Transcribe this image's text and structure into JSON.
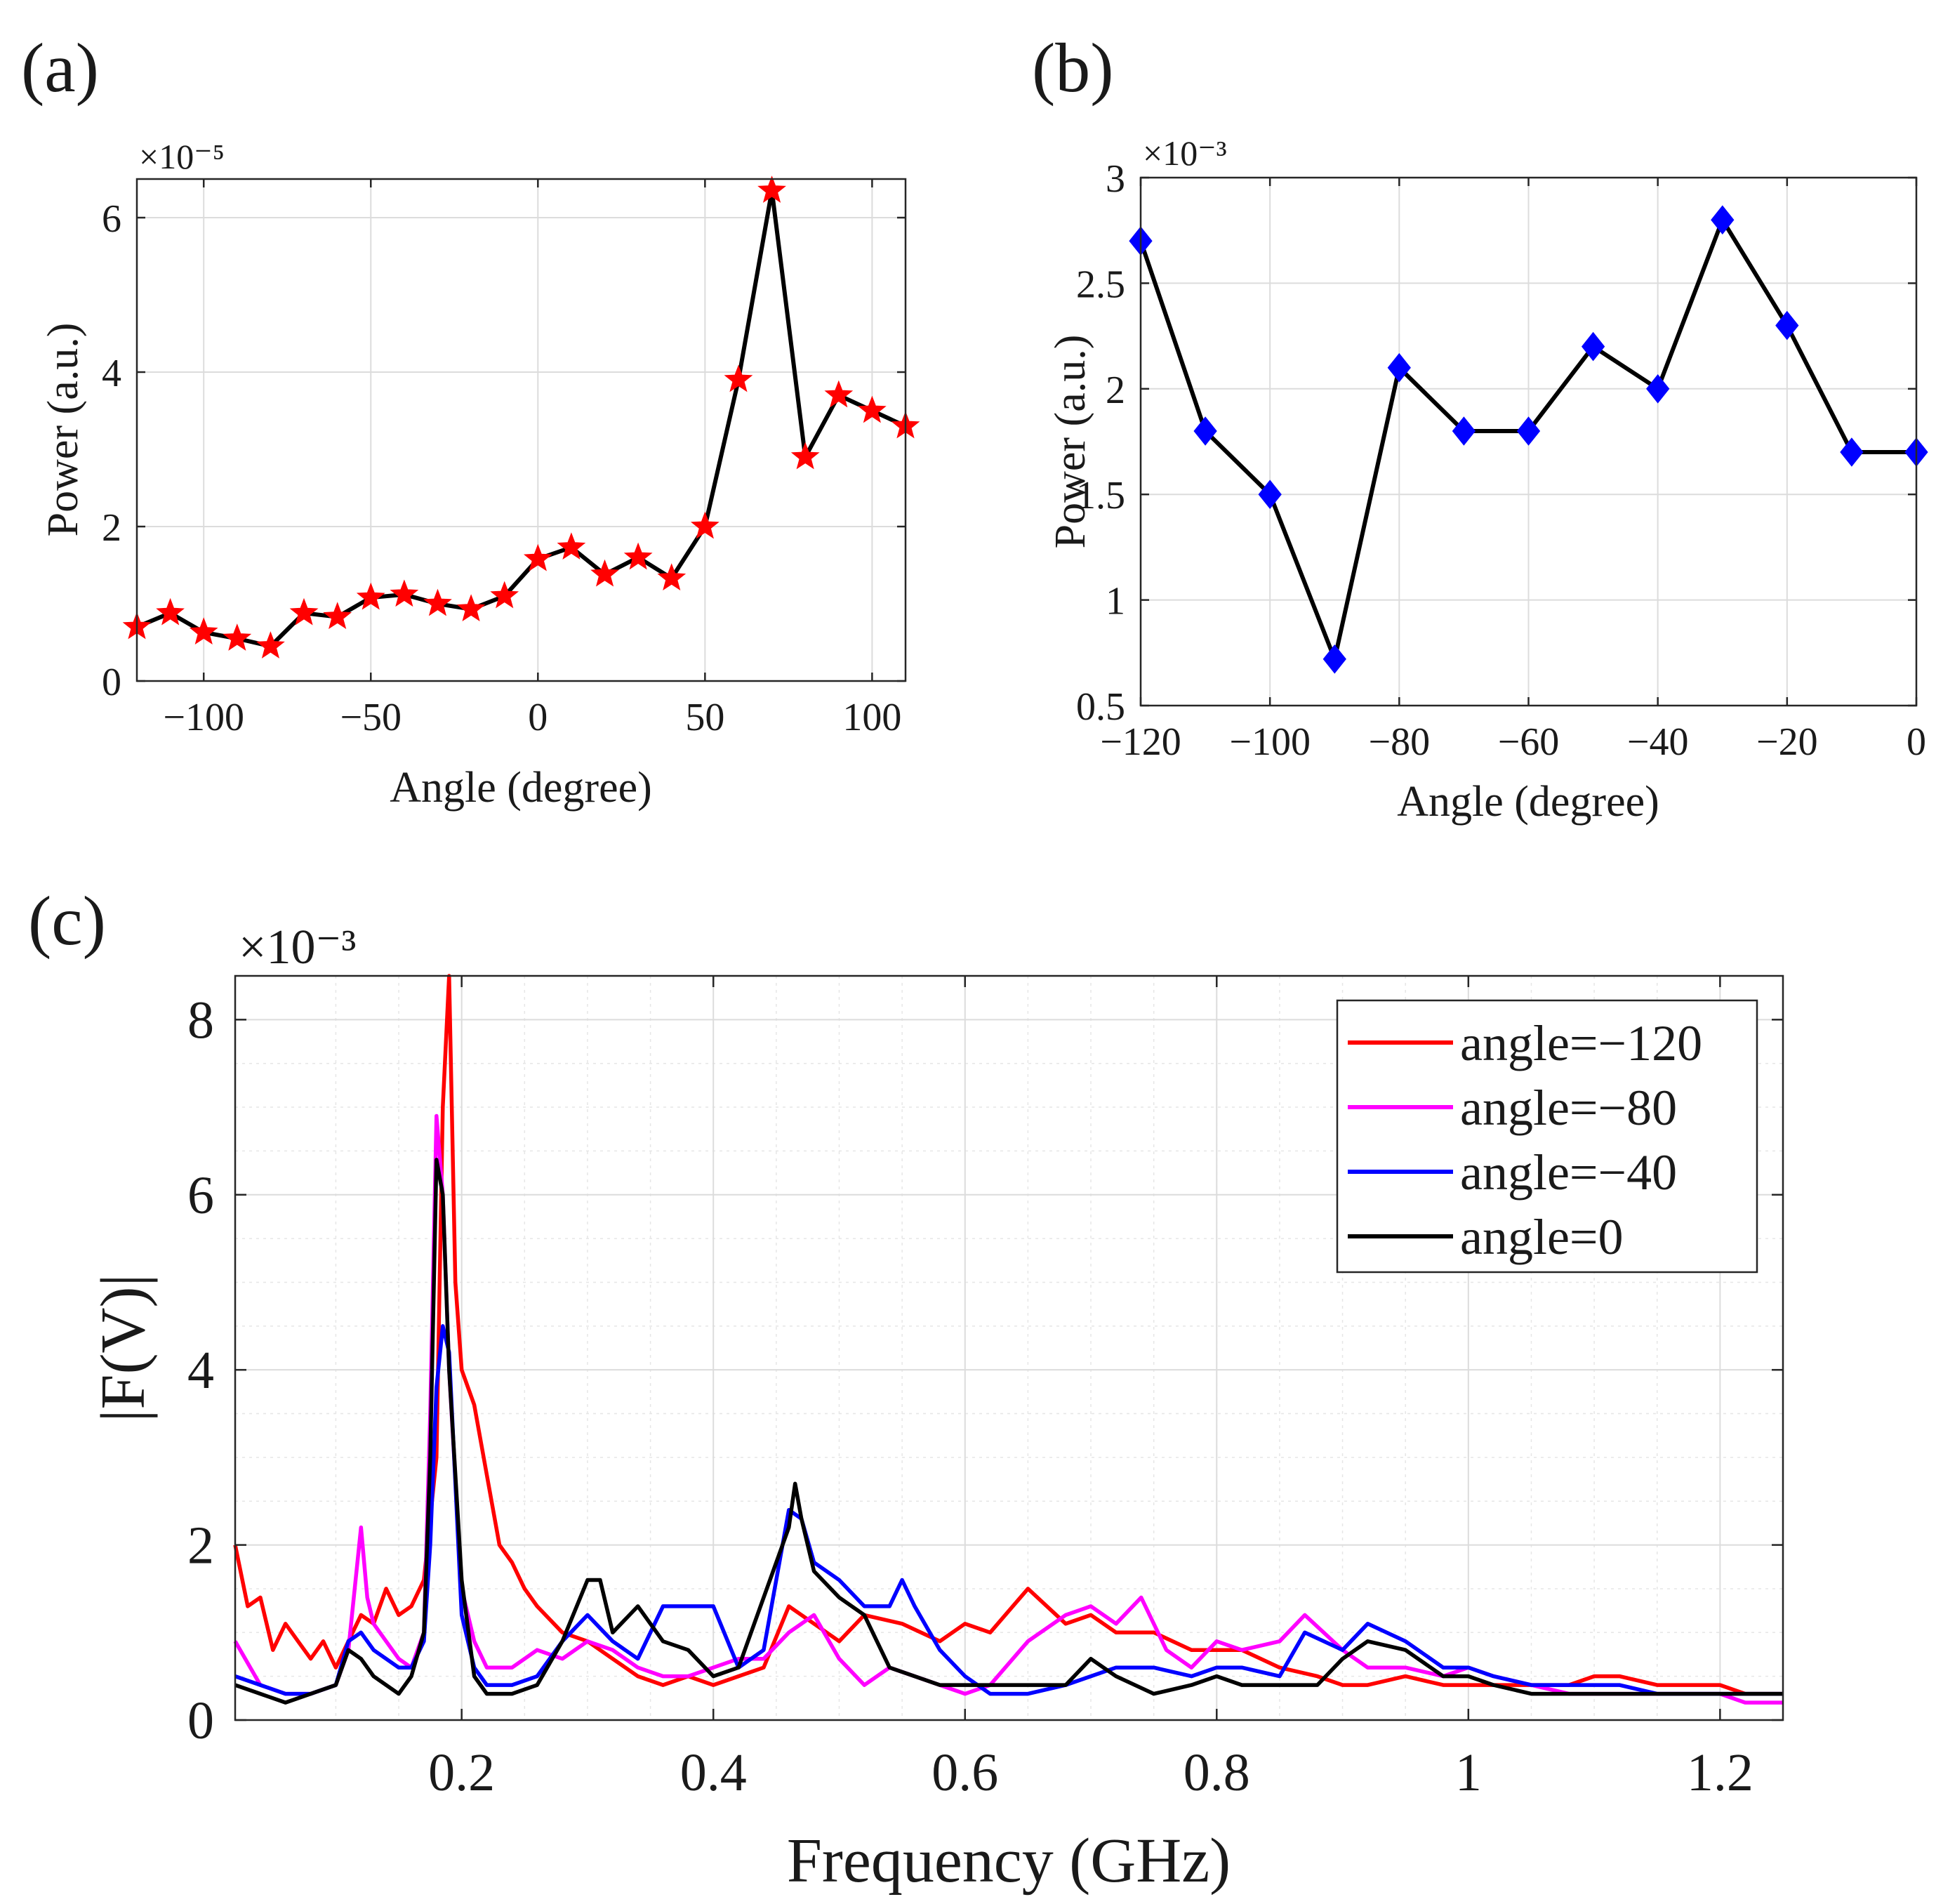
{
  "panels": {
    "a": "(a)",
    "b": "(b)",
    "c": "(c)"
  },
  "chart_data": [
    {
      "id": "a",
      "type": "line",
      "xlabel": "Angle (degree)",
      "ylabel": "Power (a.u.)",
      "exponent_label": "×10⁻⁵",
      "xlim": [
        -120,
        110
      ],
      "ylim": [
        0,
        6.5
      ],
      "xticks": [
        -100,
        -50,
        0,
        50,
        100
      ],
      "xtick_labels": [
        "−100",
        "−50",
        "0",
        "50",
        "100"
      ],
      "yticks": [
        0,
        2,
        4,
        6
      ],
      "ytick_labels": [
        "0",
        "2",
        "4",
        "6"
      ],
      "grid": true,
      "marker": "star",
      "marker_color": "#ff0000",
      "line_color": "#000000",
      "x": [
        -120,
        -110,
        -100,
        -90,
        -80,
        -70,
        -60,
        -50,
        -40,
        -30,
        -20,
        -10,
        0,
        10,
        20,
        30,
        40,
        50,
        60,
        70,
        80,
        90,
        100,
        110
      ],
      "y": [
        0.7,
        0.88,
        0.63,
        0.55,
        0.45,
        0.88,
        0.83,
        1.08,
        1.12,
        1.0,
        0.93,
        1.1,
        1.58,
        1.73,
        1.38,
        1.6,
        1.33,
        2.0,
        3.9,
        6.35,
        2.9,
        3.7,
        3.5,
        3.3
      ]
    },
    {
      "id": "b",
      "type": "line",
      "xlabel": "Angle (degree)",
      "ylabel": "Power (a.u.)",
      "exponent_label": "×10⁻³",
      "xlim": [
        -120,
        0
      ],
      "ylim": [
        0.5,
        3
      ],
      "xticks": [
        -120,
        -100,
        -80,
        -60,
        -40,
        -20,
        0
      ],
      "xtick_labels": [
        "−120",
        "−100",
        "−80",
        "−60",
        "−40",
        "−20",
        "0"
      ],
      "yticks": [
        0.5,
        1,
        1.5,
        2,
        2.5,
        3
      ],
      "ytick_labels": [
        "0.5",
        "1",
        "1.5",
        "2",
        "2.5",
        "3"
      ],
      "grid": true,
      "marker": "diamond",
      "marker_color": "#0000ff",
      "line_color": "#000000",
      "x": [
        -120,
        -110,
        -100,
        -90,
        -80,
        -70,
        -60,
        -50,
        -40,
        -30,
        -20,
        -10,
        0
      ],
      "y": [
        2.7,
        1.8,
        1.5,
        0.72,
        2.1,
        1.8,
        1.8,
        2.2,
        2.0,
        2.8,
        2.3,
        1.7,
        1.7
      ]
    },
    {
      "id": "c",
      "type": "line",
      "xlabel": "Frequency (GHz)",
      "ylabel": "|F(V)|",
      "exponent_label": "×10⁻³",
      "xlim": [
        0.02,
        1.25
      ],
      "ylim": [
        0,
        8.5
      ],
      "xticks": [
        0.2,
        0.4,
        0.6,
        0.8,
        1,
        1.2
      ],
      "xtick_labels": [
        "0.2",
        "0.4",
        "0.6",
        "0.8",
        "1",
        "1.2"
      ],
      "yticks": [
        0,
        2,
        4,
        6,
        8
      ],
      "ytick_labels": [
        "0",
        "2",
        "4",
        "6",
        "8"
      ],
      "grid": true,
      "legend_position": "top-right",
      "series": [
        {
          "name": "angle=−120",
          "color": "#ff0000",
          "x": [
            0.02,
            0.03,
            0.04,
            0.05,
            0.06,
            0.07,
            0.08,
            0.09,
            0.1,
            0.11,
            0.12,
            0.13,
            0.14,
            0.15,
            0.16,
            0.17,
            0.18,
            0.185,
            0.19,
            0.195,
            0.2,
            0.21,
            0.22,
            0.23,
            0.24,
            0.25,
            0.26,
            0.28,
            0.3,
            0.32,
            0.34,
            0.36,
            0.38,
            0.4,
            0.42,
            0.44,
            0.46,
            0.48,
            0.5,
            0.52,
            0.55,
            0.58,
            0.6,
            0.62,
            0.65,
            0.68,
            0.7,
            0.72,
            0.75,
            0.78,
            0.8,
            0.82,
            0.85,
            0.88,
            0.9,
            0.92,
            0.95,
            0.98,
            1.0,
            1.02,
            1.05,
            1.08,
            1.1,
            1.12,
            1.15,
            1.18,
            1.2,
            1.22,
            1.25
          ],
          "y": [
            2.0,
            1.3,
            1.4,
            0.8,
            1.1,
            0.9,
            0.7,
            0.9,
            0.6,
            0.9,
            1.2,
            1.1,
            1.5,
            1.2,
            1.3,
            1.6,
            3.0,
            7.0,
            8.5,
            5.0,
            4.0,
            3.6,
            2.8,
            2.0,
            1.8,
            1.5,
            1.3,
            1.0,
            0.9,
            0.7,
            0.5,
            0.4,
            0.5,
            0.4,
            0.5,
            0.6,
            1.3,
            1.1,
            0.9,
            1.2,
            1.1,
            0.9,
            1.1,
            1.0,
            1.5,
            1.1,
            1.2,
            1.0,
            1.0,
            0.8,
            0.8,
            0.8,
            0.6,
            0.5,
            0.4,
            0.4,
            0.5,
            0.4,
            0.4,
            0.4,
            0.4,
            0.4,
            0.5,
            0.5,
            0.4,
            0.4,
            0.4,
            0.3,
            0.3
          ]
        },
        {
          "name": "angle=−80",
          "color": "#ff00ff",
          "x": [
            0.02,
            0.04,
            0.06,
            0.08,
            0.1,
            0.11,
            0.12,
            0.125,
            0.13,
            0.14,
            0.15,
            0.16,
            0.17,
            0.175,
            0.18,
            0.185,
            0.19,
            0.2,
            0.21,
            0.22,
            0.24,
            0.26,
            0.28,
            0.3,
            0.32,
            0.34,
            0.36,
            0.38,
            0.4,
            0.42,
            0.44,
            0.46,
            0.48,
            0.5,
            0.52,
            0.54,
            0.56,
            0.58,
            0.6,
            0.62,
            0.65,
            0.68,
            0.7,
            0.72,
            0.74,
            0.76,
            0.78,
            0.8,
            0.82,
            0.85,
            0.87,
            0.9,
            0.92,
            0.95,
            0.98,
            1.0,
            1.02,
            1.05,
            1.08,
            1.1,
            1.12,
            1.15,
            1.18,
            1.2,
            1.22,
            1.25
          ],
          "y": [
            0.9,
            0.4,
            0.3,
            0.3,
            0.4,
            0.8,
            2.2,
            1.4,
            1.1,
            0.9,
            0.7,
            0.6,
            1.0,
            3.5,
            6.9,
            6.0,
            4.0,
            1.5,
            0.9,
            0.6,
            0.6,
            0.8,
            0.7,
            0.9,
            0.8,
            0.6,
            0.5,
            0.5,
            0.6,
            0.7,
            0.7,
            1.0,
            1.2,
            0.7,
            0.4,
            0.6,
            0.5,
            0.4,
            0.3,
            0.4,
            0.9,
            1.2,
            1.3,
            1.1,
            1.4,
            0.8,
            0.6,
            0.9,
            0.8,
            0.9,
            1.2,
            0.8,
            0.6,
            0.6,
            0.5,
            0.6,
            0.5,
            0.4,
            0.3,
            0.3,
            0.3,
            0.3,
            0.3,
            0.3,
            0.2,
            0.2
          ]
        },
        {
          "name": "angle=−40",
          "color": "#0000ff",
          "x": [
            0.02,
            0.04,
            0.06,
            0.08,
            0.1,
            0.11,
            0.12,
            0.13,
            0.14,
            0.15,
            0.16,
            0.17,
            0.175,
            0.18,
            0.185,
            0.19,
            0.2,
            0.21,
            0.22,
            0.24,
            0.26,
            0.28,
            0.3,
            0.32,
            0.34,
            0.36,
            0.38,
            0.4,
            0.42,
            0.44,
            0.46,
            0.47,
            0.48,
            0.5,
            0.52,
            0.54,
            0.55,
            0.56,
            0.58,
            0.6,
            0.62,
            0.65,
            0.68,
            0.7,
            0.72,
            0.75,
            0.78,
            0.8,
            0.82,
            0.85,
            0.87,
            0.9,
            0.92,
            0.95,
            0.98,
            1.0,
            1.02,
            1.05,
            1.08,
            1.1,
            1.12,
            1.15,
            1.18,
            1.2,
            1.22,
            1.25
          ],
          "y": [
            0.5,
            0.4,
            0.3,
            0.3,
            0.4,
            0.9,
            1.0,
            0.8,
            0.7,
            0.6,
            0.6,
            0.9,
            2.0,
            3.8,
            4.5,
            4.2,
            1.2,
            0.6,
            0.4,
            0.4,
            0.5,
            0.9,
            1.2,
            0.9,
            0.7,
            1.3,
            1.3,
            1.3,
            0.6,
            0.8,
            2.4,
            2.3,
            1.8,
            1.6,
            1.3,
            1.3,
            1.6,
            1.3,
            0.8,
            0.5,
            0.3,
            0.3,
            0.4,
            0.5,
            0.6,
            0.6,
            0.5,
            0.6,
            0.6,
            0.5,
            1.0,
            0.8,
            1.1,
            0.9,
            0.6,
            0.6,
            0.5,
            0.4,
            0.4,
            0.4,
            0.4,
            0.3,
            0.3,
            0.3,
            0.3,
            0.3
          ]
        },
        {
          "name": "angle=0",
          "color": "#000000",
          "x": [
            0.02,
            0.04,
            0.06,
            0.08,
            0.1,
            0.11,
            0.12,
            0.13,
            0.14,
            0.15,
            0.16,
            0.17,
            0.175,
            0.18,
            0.185,
            0.19,
            0.2,
            0.21,
            0.22,
            0.24,
            0.26,
            0.28,
            0.3,
            0.31,
            0.32,
            0.34,
            0.36,
            0.38,
            0.4,
            0.42,
            0.44,
            0.46,
            0.465,
            0.47,
            0.48,
            0.5,
            0.52,
            0.54,
            0.56,
            0.58,
            0.6,
            0.62,
            0.65,
            0.68,
            0.7,
            0.72,
            0.75,
            0.78,
            0.8,
            0.82,
            0.85,
            0.88,
            0.9,
            0.92,
            0.95,
            0.98,
            1.0,
            1.02,
            1.05,
            1.08,
            1.1,
            1.12,
            1.15,
            1.18,
            1.2,
            1.22,
            1.25
          ],
          "y": [
            0.4,
            0.3,
            0.2,
            0.3,
            0.4,
            0.8,
            0.7,
            0.5,
            0.4,
            0.3,
            0.5,
            1.0,
            3.0,
            6.4,
            6.0,
            4.0,
            1.6,
            0.5,
            0.3,
            0.3,
            0.4,
            0.9,
            1.6,
            1.6,
            1.0,
            1.3,
            0.9,
            0.8,
            0.5,
            0.6,
            1.4,
            2.2,
            2.7,
            2.3,
            1.7,
            1.4,
            1.2,
            0.6,
            0.5,
            0.4,
            0.4,
            0.4,
            0.4,
            0.4,
            0.7,
            0.5,
            0.3,
            0.4,
            0.5,
            0.4,
            0.4,
            0.4,
            0.7,
            0.9,
            0.8,
            0.5,
            0.5,
            0.4,
            0.3,
            0.3,
            0.3,
            0.3,
            0.3,
            0.3,
            0.3,
            0.3,
            0.3
          ]
        }
      ]
    }
  ]
}
